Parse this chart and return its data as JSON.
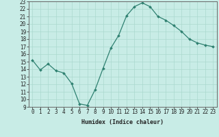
{
  "x": [
    0,
    1,
    2,
    3,
    4,
    5,
    6,
    7,
    8,
    9,
    10,
    11,
    12,
    13,
    14,
    15,
    16,
    17,
    18,
    19,
    20,
    21,
    22,
    23
  ],
  "y": [
    15.2,
    13.9,
    14.7,
    13.8,
    13.5,
    12.1,
    9.4,
    9.2,
    11.3,
    14.1,
    16.8,
    18.5,
    21.1,
    22.3,
    22.8,
    22.3,
    21.0,
    20.5,
    19.8,
    19.0,
    18.0,
    17.5,
    17.2,
    17.0
  ],
  "xlabel": "Humidex (Indice chaleur)",
  "ylim": [
    9,
    23
  ],
  "xlim": [
    -0.5,
    23.5
  ],
  "yticks": [
    9,
    10,
    11,
    12,
    13,
    14,
    15,
    16,
    17,
    18,
    19,
    20,
    21,
    22,
    23
  ],
  "xticks": [
    0,
    1,
    2,
    3,
    4,
    5,
    6,
    7,
    8,
    9,
    10,
    11,
    12,
    13,
    14,
    15,
    16,
    17,
    18,
    19,
    20,
    21,
    22,
    23
  ],
  "line_color": "#2e8070",
  "marker_color": "#2e8070",
  "bg_color": "#c8ece6",
  "grid_color": "#aad8ce",
  "xlabel_fontsize": 6.0,
  "tick_fontsize": 5.5
}
